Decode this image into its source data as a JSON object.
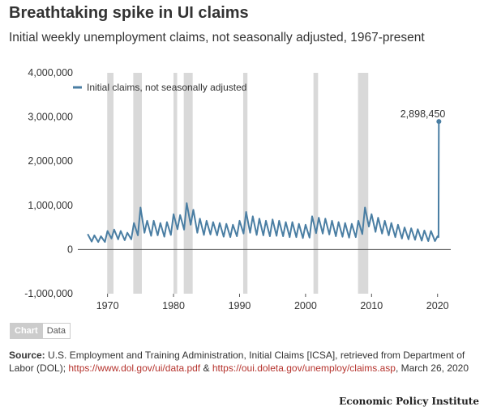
{
  "header": {
    "title": "Breathtaking spike in UI claims",
    "subtitle": "Initial weekly unemployment claims, not seasonally adjusted, 1967-present"
  },
  "toggle": {
    "chart_label": "Chart",
    "data_label": "Data"
  },
  "footer": {
    "source_label": "Source:",
    "source_text": "U.S. Employment and Training Administration, Initial Claims [ICSA], retrieved from Department of Labor (DOL);",
    "link1": "https://www.dol.gov/ui/data.pdf",
    "amp": "&",
    "link2": "https://oui.doleta.gov/unemploy/claims.asp",
    "date": ", March 26, 2020",
    "brand": "Economic Policy Institute"
  },
  "colors": {
    "series": "#4a7ea3",
    "recession": "#d9d9d9",
    "link": "#b5332d"
  },
  "chart_data": {
    "type": "line",
    "title": "",
    "xlabel": "",
    "ylabel": "",
    "xlim": [
      1965.5,
      2022
    ],
    "ylim": [
      -1000000,
      4000000
    ],
    "x_ticks": [
      1970,
      1980,
      1990,
      2000,
      2010,
      2020
    ],
    "y_ticks": [
      -1000000,
      0,
      1000000,
      2000000,
      3000000,
      4000000
    ],
    "y_tick_labels": [
      "-1,000,000",
      "0",
      "1,000,000",
      "2,000,000",
      "3,000,000",
      "4,000,000"
    ],
    "grid": false,
    "legend_position": "top-left",
    "recessions": [
      [
        1969.95,
        1970.9
      ],
      [
        1973.9,
        1975.2
      ],
      [
        1980.0,
        1980.55
      ],
      [
        1981.55,
        1982.9
      ],
      [
        1990.55,
        1991.2
      ],
      [
        2001.2,
        2001.9
      ],
      [
        2007.95,
        2009.5
      ]
    ],
    "series": [
      {
        "name": "Initial claims, not seasonally adjusted",
        "x": [
          1967.0,
          1967.6,
          1968.0,
          1968.6,
          1969.0,
          1969.6,
          1970.0,
          1970.6,
          1971.0,
          1971.6,
          1972.0,
          1972.6,
          1973.0,
          1973.6,
          1974.0,
          1974.6,
          1975.0,
          1975.6,
          1976.0,
          1976.6,
          1977.0,
          1977.6,
          1978.0,
          1978.6,
          1979.0,
          1979.6,
          1980.0,
          1980.6,
          1981.0,
          1981.6,
          1982.0,
          1982.6,
          1983.0,
          1983.6,
          1984.0,
          1984.6,
          1985.0,
          1985.6,
          1986.0,
          1986.6,
          1987.0,
          1987.6,
          1988.0,
          1988.6,
          1989.0,
          1989.6,
          1990.0,
          1990.6,
          1991.0,
          1991.6,
          1992.0,
          1992.6,
          1993.0,
          1993.6,
          1994.0,
          1994.6,
          1995.0,
          1995.6,
          1996.0,
          1996.6,
          1997.0,
          1997.6,
          1998.0,
          1998.6,
          1999.0,
          1999.6,
          2000.0,
          2000.6,
          2001.0,
          2001.6,
          2002.0,
          2002.6,
          2003.0,
          2003.6,
          2004.0,
          2004.6,
          2005.0,
          2005.6,
          2006.0,
          2006.6,
          2007.0,
          2007.6,
          2008.0,
          2008.6,
          2009.0,
          2009.6,
          2010.0,
          2010.6,
          2011.0,
          2011.6,
          2012.0,
          2012.6,
          2013.0,
          2013.6,
          2014.0,
          2014.6,
          2015.0,
          2015.6,
          2016.0,
          2016.6,
          2017.0,
          2017.6,
          2018.0,
          2018.6,
          2019.0,
          2019.6,
          2020.0,
          2020.15,
          2020.2
        ],
        "y": [
          350000,
          180000,
          320000,
          170000,
          300000,
          170000,
          420000,
          250000,
          450000,
          230000,
          420000,
          210000,
          380000,
          230000,
          600000,
          320000,
          950000,
          380000,
          650000,
          310000,
          650000,
          320000,
          600000,
          290000,
          620000,
          330000,
          800000,
          460000,
          780000,
          450000,
          1050000,
          560000,
          900000,
          380000,
          700000,
          330000,
          650000,
          340000,
          620000,
          320000,
          600000,
          290000,
          580000,
          280000,
          560000,
          300000,
          650000,
          360000,
          850000,
          380000,
          750000,
          330000,
          700000,
          320000,
          650000,
          300000,
          680000,
          310000,
          650000,
          300000,
          620000,
          280000,
          620000,
          280000,
          580000,
          260000,
          560000,
          270000,
          750000,
          370000,
          720000,
          360000,
          700000,
          340000,
          650000,
          300000,
          620000,
          290000,
          600000,
          270000,
          580000,
          280000,
          650000,
          350000,
          950000,
          520000,
          800000,
          400000,
          720000,
          360000,
          650000,
          320000,
          600000,
          280000,
          560000,
          250000,
          500000,
          230000,
          480000,
          220000,
          460000,
          200000,
          430000,
          190000,
          420000,
          190000,
          300000,
          280000,
          2898450
        ]
      }
    ],
    "annotation": {
      "text": "2,898,450",
      "x": 2020.2,
      "y": 2898450
    }
  }
}
